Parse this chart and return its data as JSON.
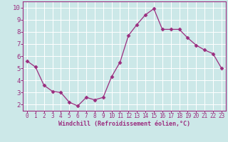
{
  "x": [
    0,
    1,
    2,
    3,
    4,
    5,
    6,
    7,
    8,
    9,
    10,
    11,
    12,
    13,
    14,
    15,
    16,
    17,
    18,
    19,
    20,
    21,
    22,
    23
  ],
  "y": [
    5.6,
    5.1,
    3.6,
    3.1,
    3.0,
    2.2,
    1.9,
    2.6,
    2.4,
    2.6,
    4.3,
    5.5,
    7.7,
    8.6,
    9.4,
    9.9,
    8.2,
    8.2,
    8.2,
    7.5,
    6.9,
    6.5,
    6.2,
    5.0
  ],
  "line_color": "#9b2d7f",
  "marker": "D",
  "marker_size": 2.5,
  "bg_color": "#cce8e8",
  "grid_color": "#b0d4d4",
  "xlabel": "Windchill (Refroidissement éolien,°C)",
  "xlabel_color": "#9b2d7f",
  "tick_color": "#9b2d7f",
  "ylim": [
    1.5,
    10.5
  ],
  "xlim": [
    -0.5,
    23.5
  ],
  "yticks": [
    2,
    3,
    4,
    5,
    6,
    7,
    8,
    9,
    10
  ],
  "xticks": [
    0,
    1,
    2,
    3,
    4,
    5,
    6,
    7,
    8,
    9,
    10,
    11,
    12,
    13,
    14,
    15,
    16,
    17,
    18,
    19,
    20,
    21,
    22,
    23
  ],
  "spine_color": "#9b2d7f",
  "spine_bottom_color": "#9b2d7f",
  "tick_fontsize": 5.5,
  "xlabel_fontsize": 6.0,
  "ytick_fontsize": 6.5
}
